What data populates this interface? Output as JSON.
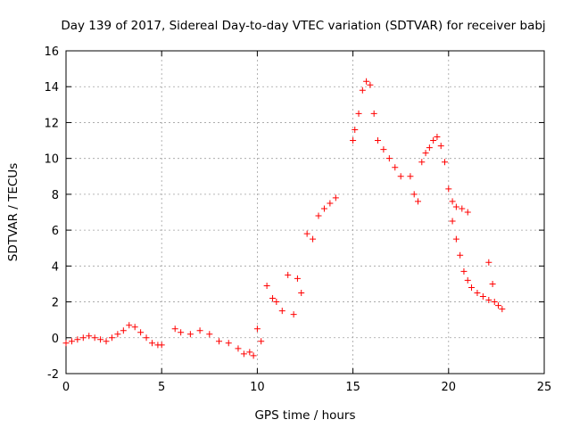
{
  "chart_data": {
    "type": "scatter",
    "title": "Day 139 of 2017, Sidereal Day-to-day VTEC variation (SDTVAR) for receiver babj",
    "xlabel": "GPS time / hours",
    "ylabel": "SDTVAR / TECUs",
    "xlim": [
      0,
      25
    ],
    "ylim": [
      -2,
      16
    ],
    "xticks": [
      "0",
      "5",
      "10",
      "15",
      "20",
      "25"
    ],
    "yticks": [
      "-2",
      "0",
      "2",
      "4",
      "6",
      "8",
      "10",
      "12",
      "14",
      "16"
    ],
    "grid": true,
    "marker": "plus",
    "color": "#ff0000",
    "series": [
      {
        "name": "SDTVAR",
        "x": [
          0,
          0.3,
          0.6,
          0.9,
          1.2,
          1.5,
          1.8,
          2.1,
          2.4,
          2.7,
          3.0,
          3.3,
          3.6,
          3.9,
          4.2,
          4.5,
          4.8,
          5.0,
          5.7,
          6.0,
          6.5,
          7.0,
          7.5,
          8.0,
          8.5,
          9.0,
          9.3,
          9.6,
          9.8,
          10.0,
          10.2,
          10.5,
          10.8,
          11.0,
          11.3,
          11.6,
          11.9,
          12.1,
          12.3,
          12.6,
          12.9,
          13.2,
          13.5,
          13.8,
          14.1,
          15.0,
          15.1,
          15.3,
          15.5,
          15.7,
          15.9,
          16.1,
          16.3,
          16.6,
          16.9,
          17.2,
          17.5,
          18.0,
          18.2,
          18.4,
          18.6,
          18.8,
          19.0,
          19.2,
          19.4,
          19.6,
          19.8,
          20.0,
          20.2,
          20.4,
          20.7,
          21.0,
          20.2,
          20.4,
          20.6,
          20.8,
          21.0,
          21.2,
          21.5,
          21.8,
          22.1,
          22.4,
          22.6,
          22.8,
          22.1,
          22.3
        ],
        "values": [
          -0.3,
          -0.2,
          -0.1,
          0.0,
          0.1,
          0.0,
          -0.1,
          -0.2,
          0.0,
          0.2,
          0.4,
          0.7,
          0.6,
          0.3,
          0.0,
          -0.3,
          -0.4,
          -0.4,
          0.5,
          0.3,
          0.2,
          0.4,
          0.2,
          -0.2,
          -0.3,
          -0.6,
          -0.9,
          -0.8,
          -1.0,
          0.5,
          -0.2,
          2.9,
          2.2,
          2.0,
          1.5,
          3.5,
          1.3,
          3.3,
          2.5,
          5.8,
          5.5,
          6.8,
          7.2,
          7.5,
          7.8,
          11.0,
          11.6,
          12.5,
          13.8,
          14.3,
          14.1,
          12.5,
          11.0,
          10.5,
          10.0,
          9.5,
          9.0,
          9.0,
          8.0,
          7.6,
          9.8,
          10.3,
          10.6,
          11.0,
          11.2,
          10.7,
          9.8,
          8.3,
          7.6,
          7.3,
          7.2,
          7.0,
          6.5,
          5.5,
          4.6,
          3.7,
          3.2,
          2.8,
          2.5,
          2.3,
          2.1,
          2.0,
          1.8,
          1.6,
          4.2,
          3.0
        ]
      }
    ]
  }
}
